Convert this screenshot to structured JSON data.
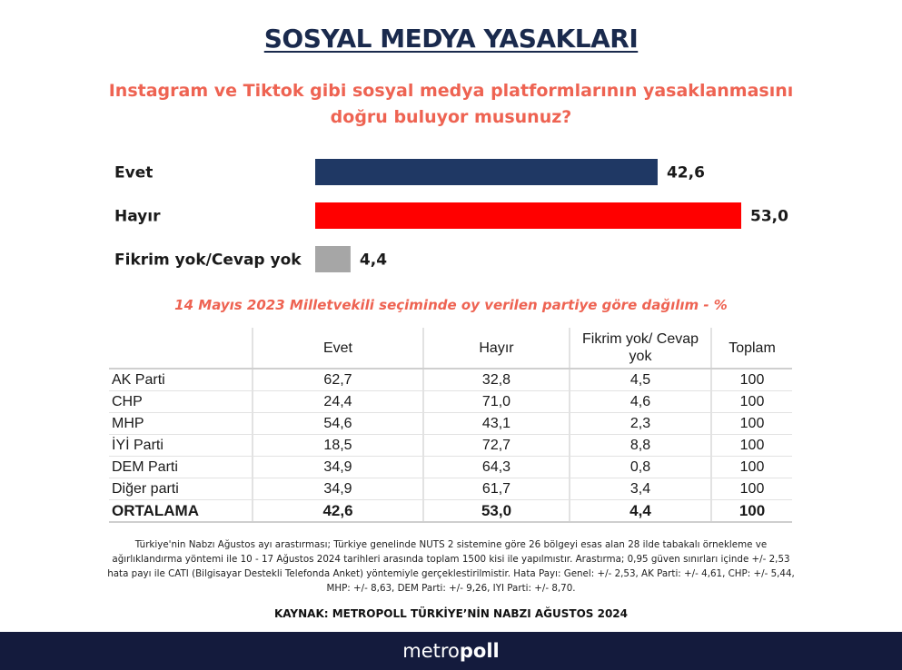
{
  "title": "SOSYAL MEDYA YASAKLARI",
  "question": "Instagram ve Tiktok gibi sosyal medya platformlarının yasaklanmasını doğru buluyor musunuz?",
  "colors": {
    "title": "#1a2a4d",
    "accent": "#ee6352",
    "evet": "#1f3864",
    "hayir": "#ff0000",
    "fikrim_yok": "#a6a6a6",
    "footer": "#141b3d"
  },
  "chart_data": {
    "type": "bar",
    "orientation": "horizontal",
    "categories": [
      "Evet",
      "Hayır",
      "Fikrim yok/Cevap yok"
    ],
    "values": [
      42.6,
      53.0,
      4.4
    ],
    "value_labels": [
      "42,6",
      "53,0",
      "4,4"
    ],
    "colors": [
      "#1f3864",
      "#ff0000",
      "#a6a6a6"
    ],
    "xlim": [
      0,
      53.0
    ],
    "grid": false
  },
  "table": {
    "title": "14 Mayıs 2023 Milletvekili seçiminde oy verilen partiye göre dağılım - %",
    "headers": [
      "",
      "Evet",
      "Hayır",
      "Fikrim yok/ Cevap yok",
      "Toplam"
    ],
    "rows": [
      [
        "AK Parti",
        "62,7",
        "32,8",
        "4,5",
        "100"
      ],
      [
        "CHP",
        "24,4",
        "71,0",
        "4,6",
        "100"
      ],
      [
        "MHP",
        "54,6",
        "43,1",
        "2,3",
        "100"
      ],
      [
        "İYİ Parti",
        "18,5",
        "72,7",
        "8,8",
        "100"
      ],
      [
        "DEM Parti",
        "34,9",
        "64,3",
        "0,8",
        "100"
      ],
      [
        "Diğer parti",
        "34,9",
        "61,7",
        "3,4",
        "100"
      ]
    ],
    "average": [
      "ORTALAMA",
      "42,6",
      "53,0",
      "4,4",
      "100"
    ]
  },
  "note": "Türkiye'nin Nabzı Ağustos ayı arastırması; Türkiye genelinde NUTS 2 sistemine göre 26 bölgeyi esas alan 28 ilde tabakalı örnekleme ve ağırlıklandırma yöntemi ile 10 - 17 Ağustos 2024 tarihleri arasında toplam 1500 kisi ile yapılmıstır. Arastırma; 0,95 güven sınırları içinde +/- 2,53 hata payı ile CATI (Bilgisayar Destekli Telefonda Anket) yöntemiyle gerçeklestirilmistir. Hata Payı: Genel: +/- 2,53, AK Parti: +/- 4,61, CHP: +/- 5,44, MHP: +/- 8,63, DEM Parti: +/- 9,26, IYI Parti: +/- 8,70.",
  "source": "KAYNAK: METROPOLL TÜRKİYE’NİN NABZI AĞUSTOS 2024",
  "footer": {
    "logo_light": "metro",
    "logo_bold": "poll"
  }
}
